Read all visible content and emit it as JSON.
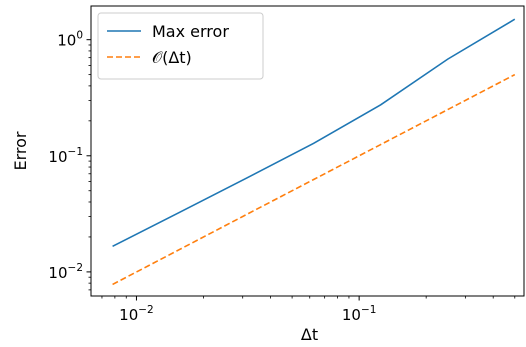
{
  "chart_data": {
    "type": "line",
    "title": "",
    "xlabel": "Δt",
    "ylabel": "Error",
    "xscale": "log",
    "yscale": "log",
    "xlim": [
      0.00625,
      0.55
    ],
    "ylim": [
      0.0062,
      1.95
    ],
    "grid": false,
    "legend_position": "top-left",
    "x": [
      0.0078125,
      0.015625,
      0.03125,
      0.0625,
      0.125,
      0.25,
      0.5
    ],
    "series": [
      {
        "name": "Max error",
        "style": "solid",
        "color": "#1f77b4",
        "values": [
          0.0166,
          0.0326,
          0.0643,
          0.128,
          0.275,
          0.68,
          1.5
        ]
      },
      {
        "name": "𝒪(Δt)",
        "style": "dashed",
        "color": "#ff7f0e",
        "values": [
          0.0078,
          0.0156,
          0.03125,
          0.0625,
          0.125,
          0.25,
          0.5
        ]
      }
    ],
    "x_major_ticks": [
      {
        "value": 0.01,
        "base": "10",
        "exp": "−2"
      },
      {
        "value": 0.1,
        "base": "10",
        "exp": "−1"
      }
    ],
    "y_major_ticks": [
      {
        "value": 0.01,
        "base": "10",
        "exp": "−2"
      },
      {
        "value": 0.1,
        "base": "10",
        "exp": "−1"
      },
      {
        "value": 1,
        "base": "10",
        "exp": "0"
      }
    ]
  }
}
